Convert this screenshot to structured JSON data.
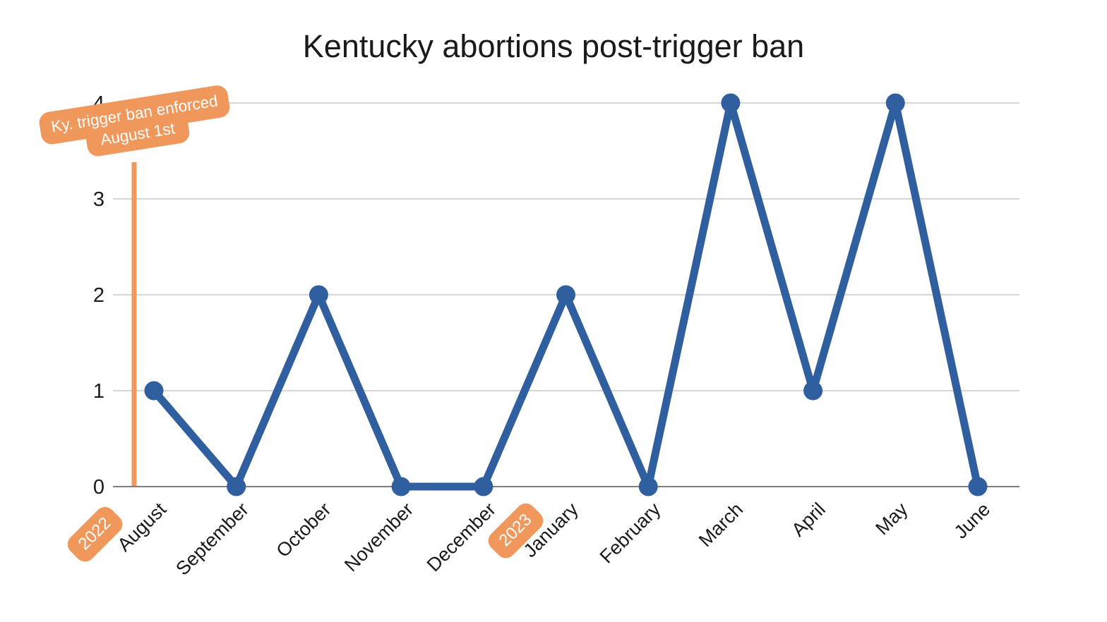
{
  "chart_data": {
    "type": "line",
    "title": "Kentucky abortions post-trigger ban",
    "categories": [
      "August",
      "September",
      "October",
      "November",
      "December",
      "January",
      "February",
      "March",
      "April",
      "May",
      "June"
    ],
    "values": [
      1,
      0,
      2,
      0,
      0,
      2,
      0,
      4,
      1,
      4,
      0
    ],
    "xlabel": "",
    "ylabel": "",
    "ylim": [
      0,
      4
    ],
    "yticks": [
      0,
      1,
      2,
      3,
      4
    ],
    "grid": true,
    "legend": false,
    "x_tick_rotation": -45,
    "year_markers": [
      {
        "label": "2022",
        "category_index": 0
      },
      {
        "label": "2023",
        "category_index": 5
      }
    ],
    "annotation": {
      "line1": "Ky. trigger ban enforced",
      "line2": "August 1st",
      "event_category": "August"
    }
  },
  "colors": {
    "line_blue": "#2F5F9E",
    "accent_orange": "#F0975C",
    "gridline_gray": "#C9C9C9",
    "axis_gray": "#7D7D7D",
    "label_black": "#1A1A1A",
    "annotation_text_white": "#FFFFFF"
  }
}
